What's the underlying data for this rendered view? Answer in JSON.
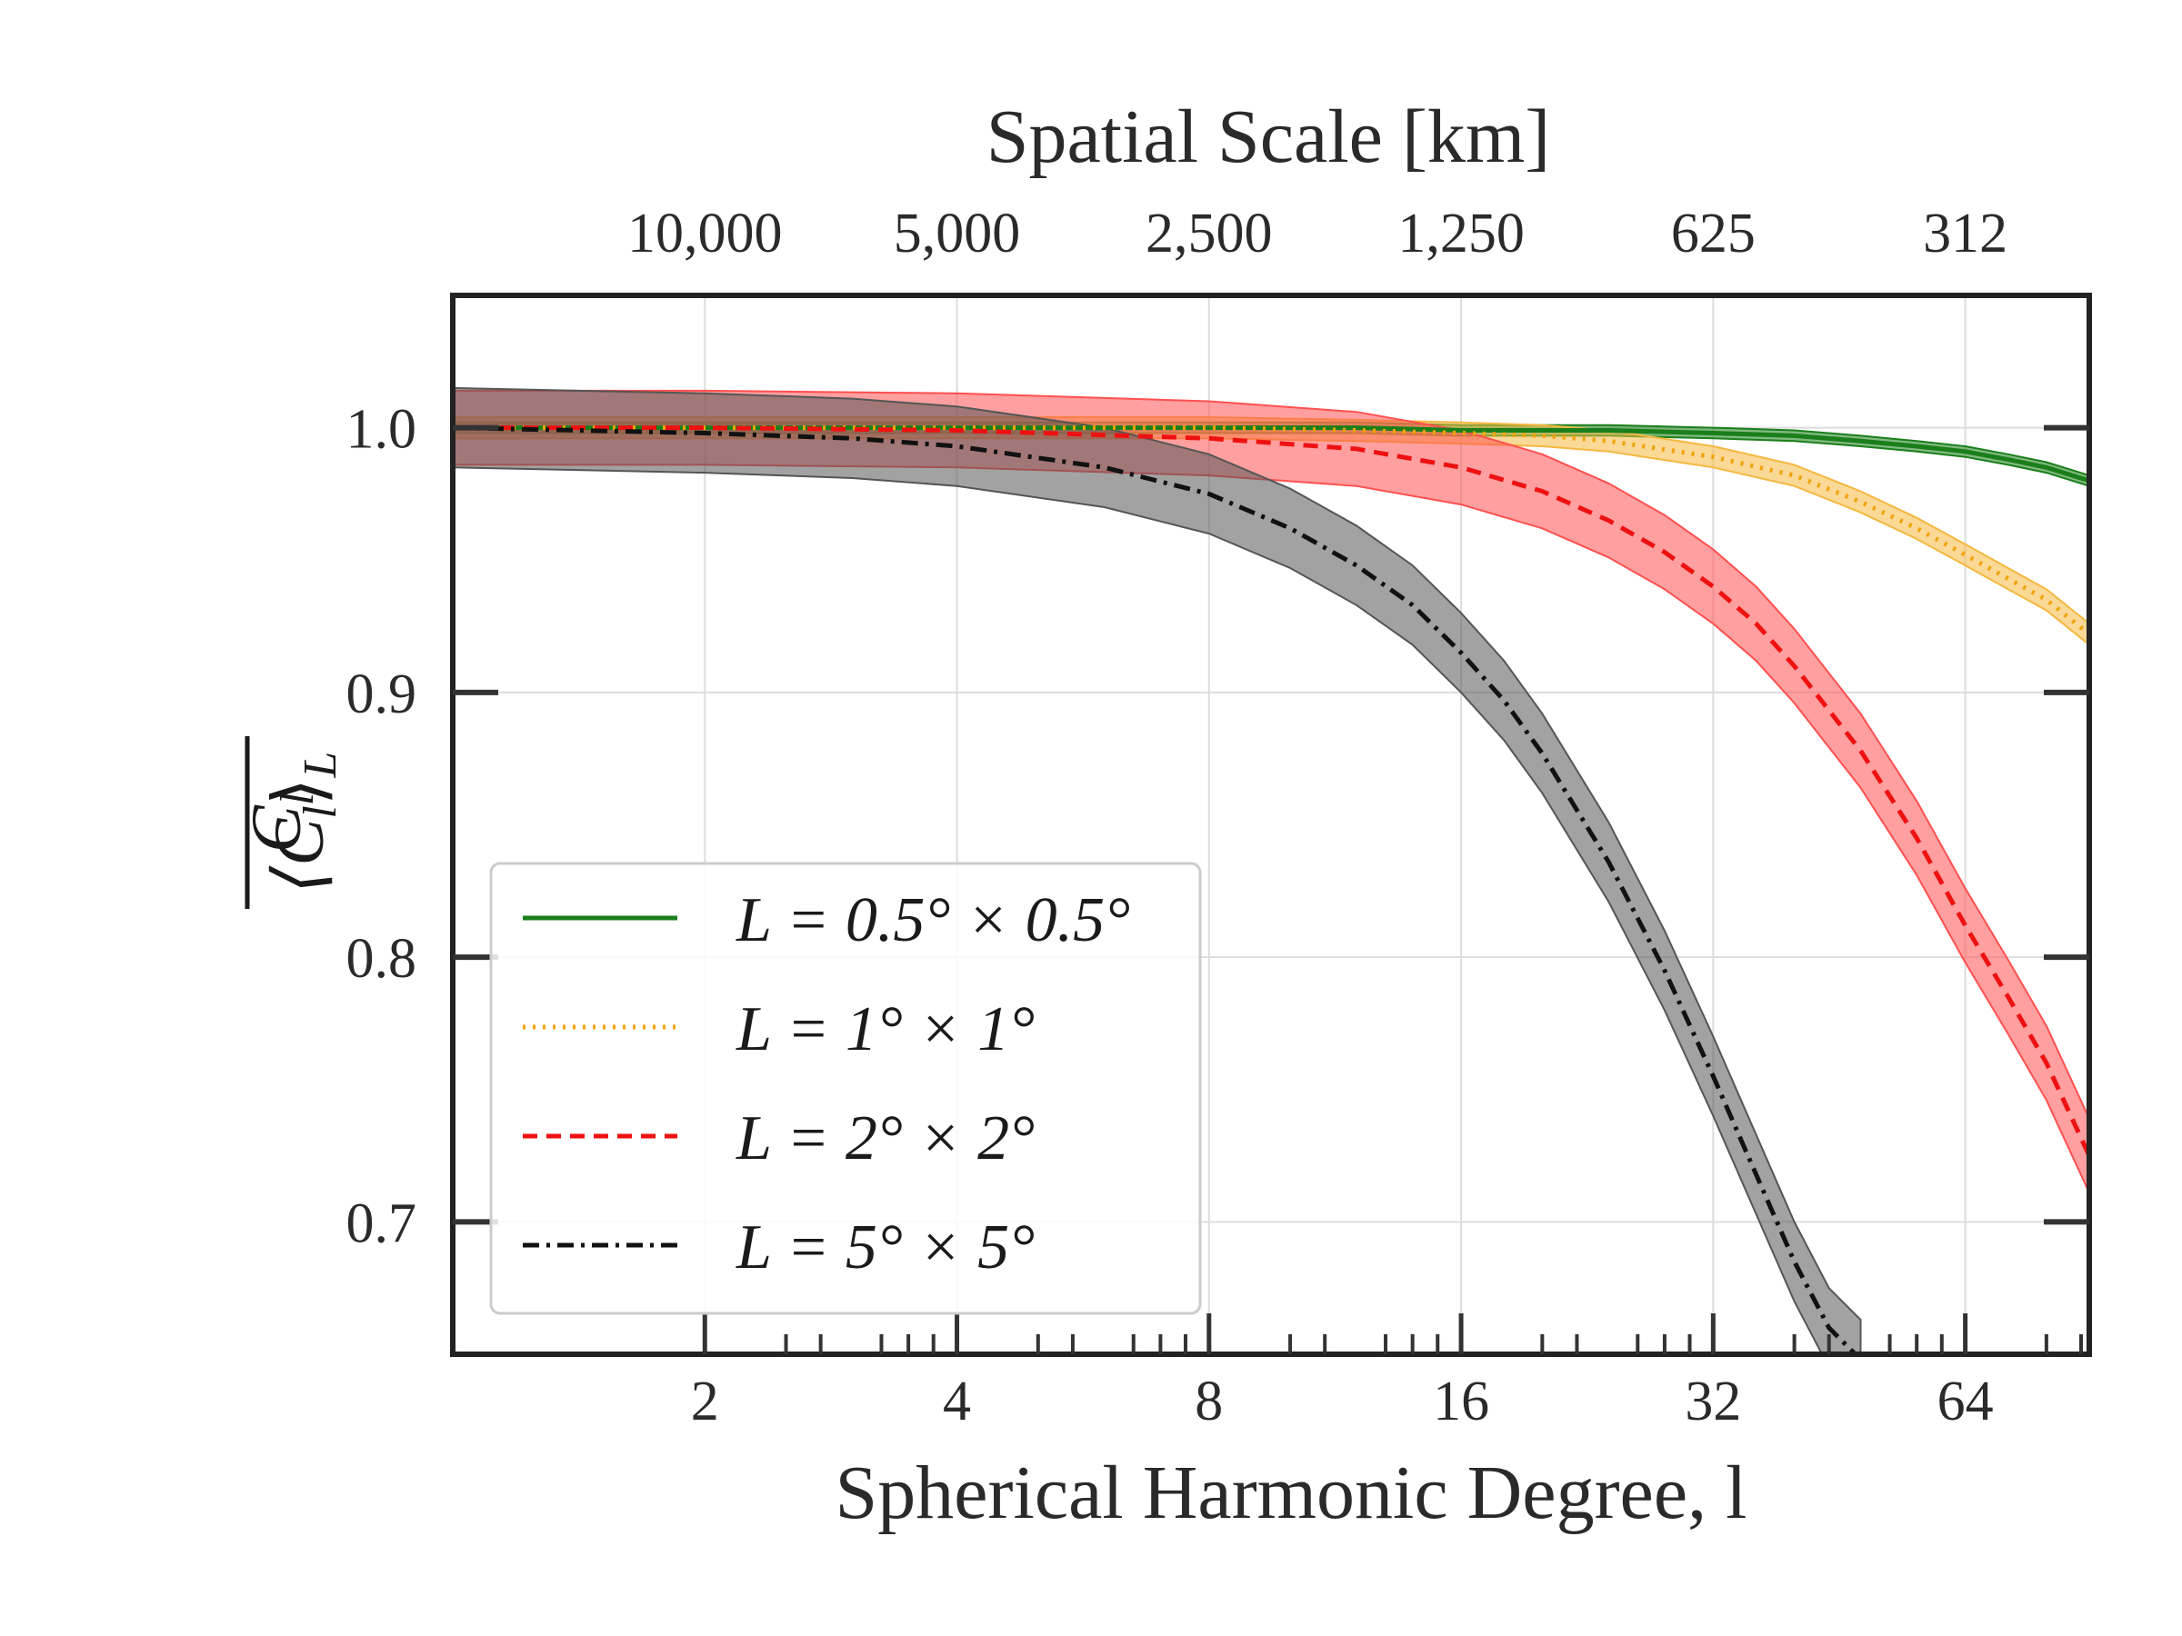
{
  "chart_data": {
    "type": "line",
    "title": "",
    "xlabel": "Spherical Harmonic Degree, l",
    "x2label": "Spatial Scale [km]",
    "ylabel_numerator": "⟨C",
    "ylabel_numerator_sub": "l",
    "ylabel_numerator_close": "⟩",
    "ylabel_numerator_subL": "L",
    "ylabel_denominator": "C",
    "ylabel_denominator_sub": "l",
    "xscale": "log2",
    "xlim": [
      1,
      90
    ],
    "ylim": [
      0.65,
      1.05
    ],
    "grid": true,
    "legend_location": "lower-left",
    "x_ticks": [
      {
        "value": 2,
        "label": "2"
      },
      {
        "value": 4,
        "label": "4"
      },
      {
        "value": 8,
        "label": "8"
      },
      {
        "value": 16,
        "label": "16"
      },
      {
        "value": 32,
        "label": "32"
      },
      {
        "value": 64,
        "label": "64"
      }
    ],
    "x2_ticks": [
      {
        "value": 2,
        "label": "10,000"
      },
      {
        "value": 4,
        "label": "5,000"
      },
      {
        "value": 8,
        "label": "2,500"
      },
      {
        "value": 16,
        "label": "1,250"
      },
      {
        "value": 32,
        "label": "625"
      },
      {
        "value": 64,
        "label": "312"
      }
    ],
    "y_ticks": [
      {
        "value": 0.7,
        "label": "0.7"
      },
      {
        "value": 0.8,
        "label": "0.8"
      },
      {
        "value": 0.9,
        "label": "0.9"
      },
      {
        "value": 1.0,
        "label": "1.0"
      }
    ],
    "series": [
      {
        "name": "L=0.5°×0.5°",
        "legend_label": "L = 0.5° × 0.5°",
        "color": "#1a7f1a",
        "dash": "solid",
        "x": [
          1,
          2,
          4,
          8,
          12,
          16,
          24,
          32,
          40,
          48,
          56,
          64,
          72,
          80,
          90
        ],
        "y": [
          1.0,
          1.0,
          1.0,
          1.0,
          1.0,
          0.999,
          0.999,
          0.998,
          0.997,
          0.995,
          0.993,
          0.991,
          0.988,
          0.985,
          0.98
        ],
        "band": 0.002
      },
      {
        "name": "L=1°×1°",
        "legend_label": "L = 1° × 1°",
        "color": "#f0a30a",
        "band_color": "#f5b840",
        "dash": "dotted",
        "x": [
          1,
          2,
          4,
          8,
          12,
          16,
          20,
          24,
          32,
          40,
          48,
          56,
          64,
          72,
          80,
          90
        ],
        "y": [
          1.0,
          1.0,
          1.0,
          1.0,
          0.999,
          0.998,
          0.997,
          0.995,
          0.989,
          0.982,
          0.972,
          0.962,
          0.952,
          0.943,
          0.935,
          0.922
        ],
        "band": 0.004
      },
      {
        "name": "L=2°×2°",
        "legend_label": "L = 2° × 2°",
        "color": "#ee1111",
        "band_color": "#ff5050",
        "dash": "dashed",
        "x": [
          1,
          2,
          4,
          8,
          12,
          16,
          20,
          24,
          28,
          32,
          36,
          40,
          48,
          56,
          64,
          72,
          80,
          90
        ],
        "y": [
          1.0,
          1.0,
          0.999,
          0.996,
          0.992,
          0.985,
          0.976,
          0.965,
          0.953,
          0.94,
          0.926,
          0.91,
          0.878,
          0.845,
          0.812,
          0.785,
          0.76,
          0.725
        ],
        "band": 0.014
      },
      {
        "name": "L=5°×5°",
        "legend_label": "L = 5° × 5°",
        "color": "#111111",
        "band_color": "#555555",
        "dash": "dashdot",
        "x": [
          1,
          2,
          3,
          4,
          6,
          8,
          10,
          12,
          14,
          16,
          18,
          20,
          24,
          28,
          32,
          36,
          40,
          44,
          48
        ],
        "y": [
          1.0,
          0.998,
          0.996,
          0.993,
          0.985,
          0.975,
          0.962,
          0.948,
          0.933,
          0.915,
          0.897,
          0.877,
          0.836,
          0.795,
          0.755,
          0.718,
          0.685,
          0.66,
          0.648
        ],
        "band": 0.015
      }
    ]
  }
}
